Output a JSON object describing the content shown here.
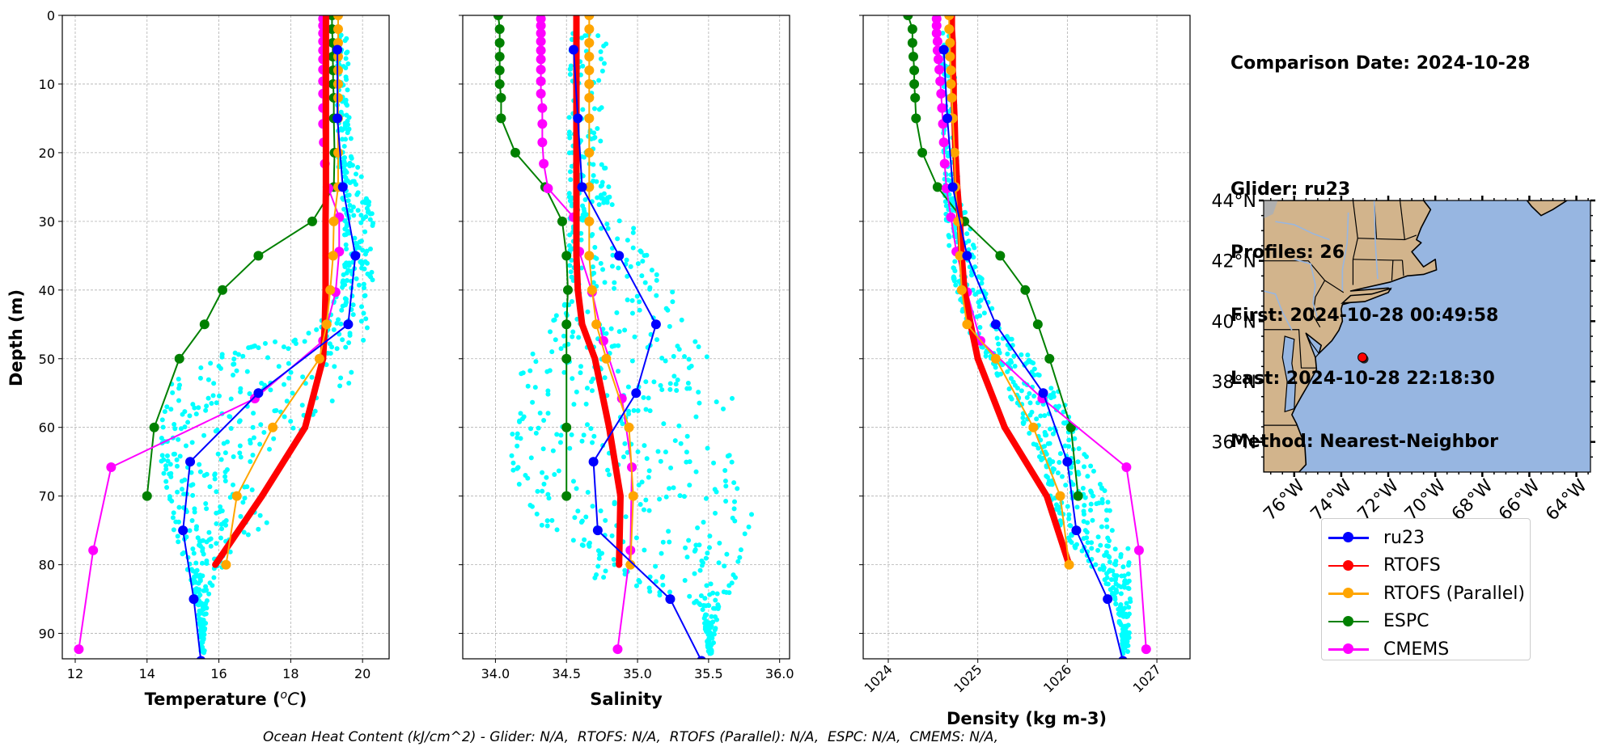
{
  "footer": {
    "text": "Ocean Heat Content (kJ/cm^2) - Glider: N/A,  RTOFS: N/A,  RTOFS (Parallel): N/A,  ESPC: N/A,  CMEMS: N/A,"
  },
  "info": {
    "comparison_date": "Comparison Date: 2024-10-28",
    "glider": "Glider: ru23",
    "profiles": "Profiles: 26",
    "first": "First: 2024-10-28 00:49:58",
    "last": "Last: 2024-10-28 22:18:30",
    "method": "Method: Nearest-Neighbor"
  },
  "legend": [
    {
      "label": "ru23",
      "color": "#0000ff"
    },
    {
      "label": "RTOFS",
      "color": "#ff0000"
    },
    {
      "label": "RTOFS (Parallel)",
      "color": "#ffa500"
    },
    {
      "label": "ESPC",
      "color": "#008000"
    },
    {
      "label": "CMEMS",
      "color": "#ff00ff"
    }
  ],
  "chart_data": [
    {
      "type": "line",
      "id": "temperature",
      "xlabel": "Temperature (°C)",
      "ylabel": "Depth (m)",
      "xlim": [
        11.64,
        20.74
      ],
      "ylim": [
        93.7,
        0
      ],
      "xticks": [
        12,
        14,
        16,
        18,
        20
      ],
      "xtick_labels": [
        "12",
        "14",
        "16",
        "18",
        "20"
      ],
      "yticks": [
        0,
        10,
        20,
        30,
        40,
        50,
        60,
        70,
        80,
        90
      ],
      "ytick_labels": [
        "0",
        "10",
        "20",
        "30",
        "40",
        "50",
        "60",
        "70",
        "80",
        "90"
      ],
      "grid": true,
      "scatter": {
        "name": "glider profiles",
        "color": "#00ffff",
        "depth": [
          2,
          10,
          20,
          26,
          30,
          36,
          40,
          46,
          50,
          54,
          58,
          62,
          66,
          70,
          74,
          78,
          82,
          86,
          90,
          93
        ],
        "min": [
          19.3,
          19.3,
          19.3,
          19.4,
          19.5,
          19.5,
          19.4,
          18.6,
          15.6,
          14.6,
          14.4,
          14.4,
          14.4,
          14.6,
          14.7,
          14.9,
          15.2,
          15.4,
          15.5,
          15.5
        ],
        "max": [
          19.6,
          19.6,
          19.7,
          20.2,
          20.3,
          20.3,
          20.3,
          20.2,
          19.9,
          19.6,
          19.2,
          18.3,
          17.0,
          17.1,
          17.5,
          16.5,
          15.9,
          15.7,
          15.6,
          15.6
        ]
      },
      "series": [
        {
          "name": "ru23",
          "color": "#0000ff",
          "width": 2,
          "depth": [
            5,
            15,
            25,
            35,
            45,
            55,
            65,
            75,
            85,
            94
          ],
          "values": [
            19.3,
            19.3,
            19.45,
            19.8,
            19.6,
            17.1,
            15.2,
            15.0,
            15.3,
            15.5
          ]
        },
        {
          "name": "RTOFS",
          "color": "#ff0000",
          "width": 8,
          "depth": [
            0,
            2,
            4,
            6,
            8,
            10,
            12,
            15,
            20,
            25,
            30,
            35,
            40,
            45,
            50,
            60,
            70,
            80
          ],
          "values": [
            18.98,
            18.98,
            18.98,
            18.98,
            18.98,
            18.98,
            18.98,
            18.98,
            18.98,
            18.98,
            18.97,
            18.97,
            18.97,
            18.95,
            18.9,
            18.4,
            17.2,
            15.9
          ]
        },
        {
          "name": "RTOFS (Parallel)",
          "color": "#ffa500",
          "width": 2,
          "depth": [
            0,
            2,
            4,
            6,
            8,
            10,
            12,
            15,
            20,
            25,
            30,
            35,
            40,
            45,
            50,
            60,
            70,
            80
          ],
          "values": [
            19.32,
            19.32,
            19.32,
            19.32,
            19.32,
            19.32,
            19.32,
            19.32,
            19.32,
            19.32,
            19.2,
            19.18,
            19.1,
            19.0,
            18.8,
            17.5,
            16.5,
            16.2
          ]
        },
        {
          "name": "ESPC",
          "color": "#008000",
          "width": 2,
          "depth": [
            0,
            2,
            4,
            6,
            8,
            10,
            12,
            15,
            20,
            25,
            30,
            35,
            40,
            45,
            50,
            60,
            70
          ],
          "values": [
            19.15,
            19.15,
            19.17,
            19.17,
            19.18,
            19.18,
            19.2,
            19.2,
            19.22,
            19.2,
            18.6,
            17.1,
            16.1,
            15.6,
            14.9,
            14.2,
            14.0
          ]
        },
        {
          "name": "CMEMS",
          "color": "#ff00ff",
          "width": 2,
          "depth": [
            0.5,
            1.5,
            2.6,
            3.8,
            5.1,
            6.4,
            7.9,
            9.6,
            11.4,
            13.5,
            15.8,
            18.5,
            21.6,
            25.2,
            29.4,
            34.4,
            40.3,
            47.4,
            55.8,
            65.8,
            77.9,
            92.3
          ],
          "values": [
            18.9,
            18.9,
            18.9,
            18.9,
            18.9,
            18.9,
            18.9,
            18.9,
            18.9,
            18.9,
            18.9,
            18.92,
            18.95,
            19.05,
            19.35,
            19.35,
            19.25,
            18.9,
            17.0,
            13.0,
            12.5,
            12.1
          ]
        }
      ]
    },
    {
      "type": "line",
      "id": "salinity",
      "xlabel": "Salinity",
      "ylabel": "",
      "xlim": [
        33.77,
        36.07
      ],
      "ylim": [
        93.7,
        0
      ],
      "xticks": [
        34.0,
        34.5,
        35.0,
        35.5,
        36.0
      ],
      "xtick_labels": [
        "34.0",
        "34.5",
        "35.0",
        "35.5",
        "36.0"
      ],
      "yticks": [
        0,
        10,
        20,
        30,
        40,
        50,
        60,
        70,
        80,
        90
      ],
      "grid": true,
      "scatter": {
        "name": "glider profiles",
        "color": "#00ffff",
        "depth": [
          2,
          10,
          20,
          26,
          30,
          36,
          40,
          46,
          50,
          54,
          58,
          62,
          66,
          70,
          74,
          78,
          82,
          86,
          90,
          93
        ],
        "min": [
          34.52,
          34.52,
          34.52,
          34.52,
          34.52,
          34.52,
          34.55,
          34.35,
          34.22,
          34.14,
          34.12,
          34.1,
          34.12,
          34.2,
          34.3,
          34.68,
          34.7,
          35.45,
          35.48,
          35.5
        ],
        "max": [
          34.78,
          34.78,
          34.78,
          34.85,
          34.95,
          35.1,
          35.25,
          35.45,
          35.6,
          35.65,
          35.7,
          35.6,
          35.7,
          35.75,
          35.83,
          35.8,
          35.7,
          35.6,
          35.55,
          35.52
        ]
      },
      "series": [
        {
          "name": "ru23",
          "color": "#0000ff",
          "width": 2,
          "depth": [
            5,
            15,
            25,
            35,
            45,
            55,
            65,
            75,
            85,
            94
          ],
          "values": [
            34.55,
            34.58,
            34.61,
            34.87,
            35.13,
            34.99,
            34.69,
            34.72,
            35.23,
            35.45
          ]
        },
        {
          "name": "RTOFS",
          "color": "#ff0000",
          "width": 8,
          "depth": [
            0,
            2,
            4,
            6,
            8,
            10,
            12,
            15,
            20,
            25,
            30,
            35,
            40,
            45,
            50,
            60,
            70,
            80
          ],
          "values": [
            34.57,
            34.57,
            34.57,
            34.57,
            34.57,
            34.57,
            34.57,
            34.57,
            34.57,
            34.57,
            34.57,
            34.57,
            34.58,
            34.61,
            34.7,
            34.8,
            34.88,
            34.87
          ]
        },
        {
          "name": "RTOFS (Parallel)",
          "color": "#ffa500",
          "width": 2,
          "depth": [
            0,
            2,
            4,
            6,
            8,
            10,
            12,
            15,
            20,
            25,
            30,
            35,
            40,
            45,
            50,
            60,
            70,
            80
          ],
          "values": [
            34.66,
            34.66,
            34.66,
            34.66,
            34.66,
            34.66,
            34.66,
            34.66,
            34.66,
            34.66,
            34.66,
            34.66,
            34.68,
            34.71,
            34.78,
            34.94,
            34.97,
            34.95
          ]
        },
        {
          "name": "ESPC",
          "color": "#008000",
          "width": 2,
          "depth": [
            0,
            2,
            4,
            6,
            8,
            10,
            12,
            15,
            20,
            25,
            30,
            35,
            40,
            45,
            50,
            60,
            70
          ],
          "values": [
            34.02,
            34.03,
            34.03,
            34.03,
            34.03,
            34.03,
            34.04,
            34.04,
            34.14,
            34.35,
            34.47,
            34.5,
            34.51,
            34.5,
            34.5,
            34.5,
            34.5
          ]
        },
        {
          "name": "CMEMS",
          "color": "#ff00ff",
          "width": 2,
          "depth": [
            0.5,
            1.5,
            2.6,
            3.8,
            5.1,
            6.4,
            7.9,
            9.6,
            11.4,
            13.5,
            15.8,
            18.5,
            21.6,
            25.2,
            29.4,
            34.4,
            40.3,
            47.4,
            55.8,
            65.8,
            77.9,
            92.3
          ],
          "values": [
            34.32,
            34.32,
            34.32,
            34.32,
            34.32,
            34.32,
            34.32,
            34.32,
            34.32,
            34.33,
            34.33,
            34.33,
            34.34,
            34.37,
            34.55,
            34.59,
            34.68,
            34.76,
            34.89,
            34.96,
            34.95,
            34.86
          ]
        }
      ]
    },
    {
      "type": "line",
      "id": "density",
      "xlabel": "Density (kg m-3)",
      "ylabel": "",
      "xlim": [
        1023.72,
        1027.37
      ],
      "ylim": [
        93.7,
        0
      ],
      "xticks": [
        1024,
        1025,
        1026,
        1027
      ],
      "xtick_labels": [
        "1024",
        "1025",
        "1026",
        "1027"
      ],
      "xtick_rotation": 45,
      "yticks": [
        0,
        10,
        20,
        30,
        40,
        50,
        60,
        70,
        80,
        90
      ],
      "grid": true,
      "scatter": {
        "name": "glider profiles",
        "color": "#00ffff",
        "depth": [
          2,
          10,
          20,
          26,
          30,
          36,
          40,
          46,
          50,
          54,
          58,
          62,
          66,
          70,
          74,
          78,
          82,
          86,
          90,
          93
        ],
        "min": [
          1024.6,
          1024.6,
          1024.62,
          1024.63,
          1024.65,
          1024.7,
          1024.75,
          1024.9,
          1025.1,
          1025.3,
          1025.45,
          1025.6,
          1025.75,
          1025.8,
          1025.9,
          1026.1,
          1026.4,
          1026.55,
          1026.6,
          1026.62
        ],
        "max": [
          1024.75,
          1024.75,
          1024.76,
          1024.8,
          1024.9,
          1025.0,
          1025.1,
          1025.3,
          1025.6,
          1025.9,
          1026.05,
          1026.15,
          1026.3,
          1026.45,
          1026.5,
          1026.7,
          1026.7,
          1026.72,
          1026.7,
          1026.68
        ]
      },
      "series": [
        {
          "name": "ru23",
          "color": "#0000ff",
          "width": 2,
          "depth": [
            5,
            15,
            25,
            35,
            45,
            55,
            65,
            75,
            85,
            94
          ],
          "values": [
            1024.62,
            1024.66,
            1024.72,
            1024.88,
            1025.2,
            1025.73,
            1026.0,
            1026.1,
            1026.45,
            1026.62
          ]
        },
        {
          "name": "RTOFS",
          "color": "#ff0000",
          "width": 8,
          "depth": [
            0,
            2,
            4,
            6,
            8,
            10,
            12,
            15,
            20,
            25,
            30,
            35,
            40,
            45,
            50,
            60,
            70,
            80
          ],
          "values": [
            1024.71,
            1024.71,
            1024.72,
            1024.72,
            1024.72,
            1024.73,
            1024.73,
            1024.74,
            1024.75,
            1024.77,
            1024.8,
            1024.82,
            1024.85,
            1024.92,
            1025.0,
            1025.3,
            1025.77,
            1026.02
          ]
        },
        {
          "name": "RTOFS (Parallel)",
          "color": "#ffa500",
          "width": 2,
          "depth": [
            0,
            2,
            4,
            6,
            8,
            10,
            12,
            15,
            20,
            25,
            30,
            35,
            40,
            45,
            50,
            60,
            70,
            80
          ],
          "values": [
            1024.68,
            1024.68,
            1024.69,
            1024.69,
            1024.7,
            1024.7,
            1024.71,
            1024.72,
            1024.74,
            1024.75,
            1024.78,
            1024.8,
            1024.82,
            1024.88,
            1025.2,
            1025.62,
            1025.92,
            1026.02
          ]
        },
        {
          "name": "ESPC",
          "color": "#008000",
          "width": 2,
          "depth": [
            0,
            2,
            4,
            6,
            8,
            10,
            12,
            15,
            20,
            25,
            30,
            35,
            40,
            45,
            50,
            60,
            70
          ],
          "values": [
            1024.22,
            1024.27,
            1024.27,
            1024.28,
            1024.29,
            1024.29,
            1024.3,
            1024.31,
            1024.38,
            1024.55,
            1024.85,
            1025.25,
            1025.53,
            1025.67,
            1025.8,
            1026.04,
            1026.12
          ]
        },
        {
          "name": "CMEMS",
          "color": "#ff00ff",
          "width": 2,
          "depth": [
            0.5,
            1.5,
            2.6,
            3.8,
            5.1,
            6.4,
            7.9,
            9.6,
            11.4,
            13.5,
            15.8,
            18.5,
            21.6,
            25.2,
            29.4,
            34.4,
            40.3,
            47.4,
            55.8,
            65.8,
            77.9,
            92.3
          ],
          "values": [
            1024.54,
            1024.54,
            1024.54,
            1024.55,
            1024.55,
            1024.56,
            1024.57,
            1024.58,
            1024.59,
            1024.6,
            1024.61,
            1024.62,
            1024.63,
            1024.65,
            1024.7,
            1024.76,
            1024.88,
            1025.03,
            1025.72,
            1026.66,
            1026.8,
            1026.88
          ]
        }
      ]
    }
  ],
  "map": {
    "lon_range": [
      -77.3,
      -63.4
    ],
    "lat_range": [
      35,
      44
    ],
    "lat_ticks": [
      44,
      42,
      40,
      38,
      36
    ],
    "lat_tick_labels": [
      "44°N",
      "42°N",
      "40°N",
      "38°N",
      "36°N"
    ],
    "lon_ticks": [
      -76,
      -74,
      -72,
      -70,
      -68,
      -66,
      -64
    ],
    "lon_tick_labels": [
      "76°W",
      "74°W",
      "72°W",
      "70°W",
      "68°W",
      "66°W",
      "64°W"
    ],
    "ocean_color": "#97b6e1",
    "land_color": "#d2b48c",
    "glider_position": {
      "lon": -73.1,
      "lat": 38.8,
      "color": "#ff0000"
    }
  }
}
